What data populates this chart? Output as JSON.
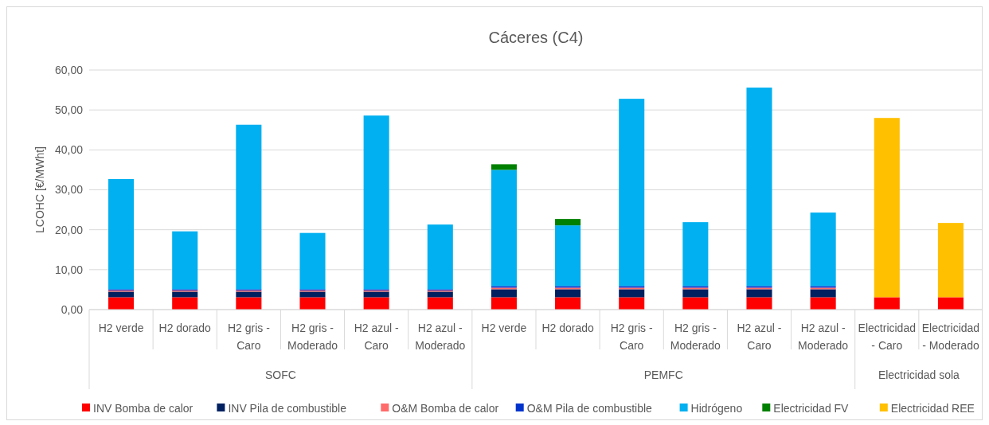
{
  "chart_data": {
    "type": "bar",
    "title": "Cáceres (C4)",
    "ylabel": "LCOHC [€/MWht]",
    "stacked": true,
    "grid": "y",
    "legend": "bottom",
    "categories": [
      "H2 verde",
      "H2 dorado",
      "H2 gris - Caro",
      "H2 gris - Moderado",
      "H2 azul - Caro",
      "H2 azul - Moderado",
      "H2 verde",
      "H2 dorado",
      "H2 gris - Caro",
      "H2 gris - Moderado",
      "H2 azul - Caro",
      "H2 azul - Moderado",
      "Electricidad - Caro",
      "Electricidad - Moderado"
    ],
    "annotations": [
      "SOFC",
      "PEMFC",
      "Electricidad sola"
    ],
    "ylim": [
      0,
      60
    ],
    "yticks": [
      {
        "value": 0,
        "label": "0,00"
      },
      {
        "value": 10,
        "label": "10,00"
      },
      {
        "value": 20,
        "label": "20,00"
      },
      {
        "value": 30,
        "label": "30,00"
      },
      {
        "value": 40,
        "label": "40,00"
      },
      {
        "value": 50,
        "label": "50,00"
      },
      {
        "value": 60,
        "label": "60,00"
      }
    ],
    "series": [
      {
        "name": "INV Bomba de calor",
        "color": "#ff0000",
        "values": [
          3.1,
          3.1,
          3.1,
          3.1,
          3.1,
          3.1,
          3.1,
          3.1,
          3.1,
          3.1,
          3.1,
          3.1,
          3.1,
          3.1
        ]
      },
      {
        "name": "INV Pila de combustible",
        "color": "#002060",
        "values": [
          1.4,
          1.4,
          1.4,
          1.4,
          1.4,
          1.4,
          2.0,
          2.0,
          2.0,
          2.0,
          2.0,
          2.0,
          null,
          null
        ]
      },
      {
        "name": "O&M Bomba de calor",
        "color": "#ff6b6b",
        "values": [
          0.3,
          0.3,
          0.3,
          0.3,
          0.3,
          0.3,
          0.4,
          0.4,
          0.4,
          0.4,
          0.4,
          0.4,
          null,
          null
        ]
      },
      {
        "name": "O&M Pila de combustible",
        "color": "#0033cc",
        "values": [
          0.3,
          0.3,
          0.3,
          0.3,
          0.3,
          0.3,
          0.4,
          0.4,
          0.4,
          0.4,
          0.4,
          0.4,
          null,
          null
        ]
      },
      {
        "name": "Hidrógeno",
        "color": "#00b0f0",
        "values": [
          27.6,
          14.5,
          41.2,
          14.1,
          43.5,
          16.2,
          29.1,
          15.2,
          46.9,
          16.0,
          49.7,
          18.4,
          null,
          null
        ]
      },
      {
        "name": "Electricidad FV",
        "color": "#008000",
        "values": [
          null,
          null,
          null,
          null,
          null,
          null,
          1.4,
          1.6,
          null,
          null,
          null,
          null,
          null,
          null
        ]
      },
      {
        "name": "Electricidad REE",
        "color": "#ffc000",
        "values": [
          null,
          null,
          null,
          null,
          null,
          null,
          null,
          null,
          null,
          null,
          null,
          null,
          44.9,
          18.6
        ]
      }
    ]
  }
}
